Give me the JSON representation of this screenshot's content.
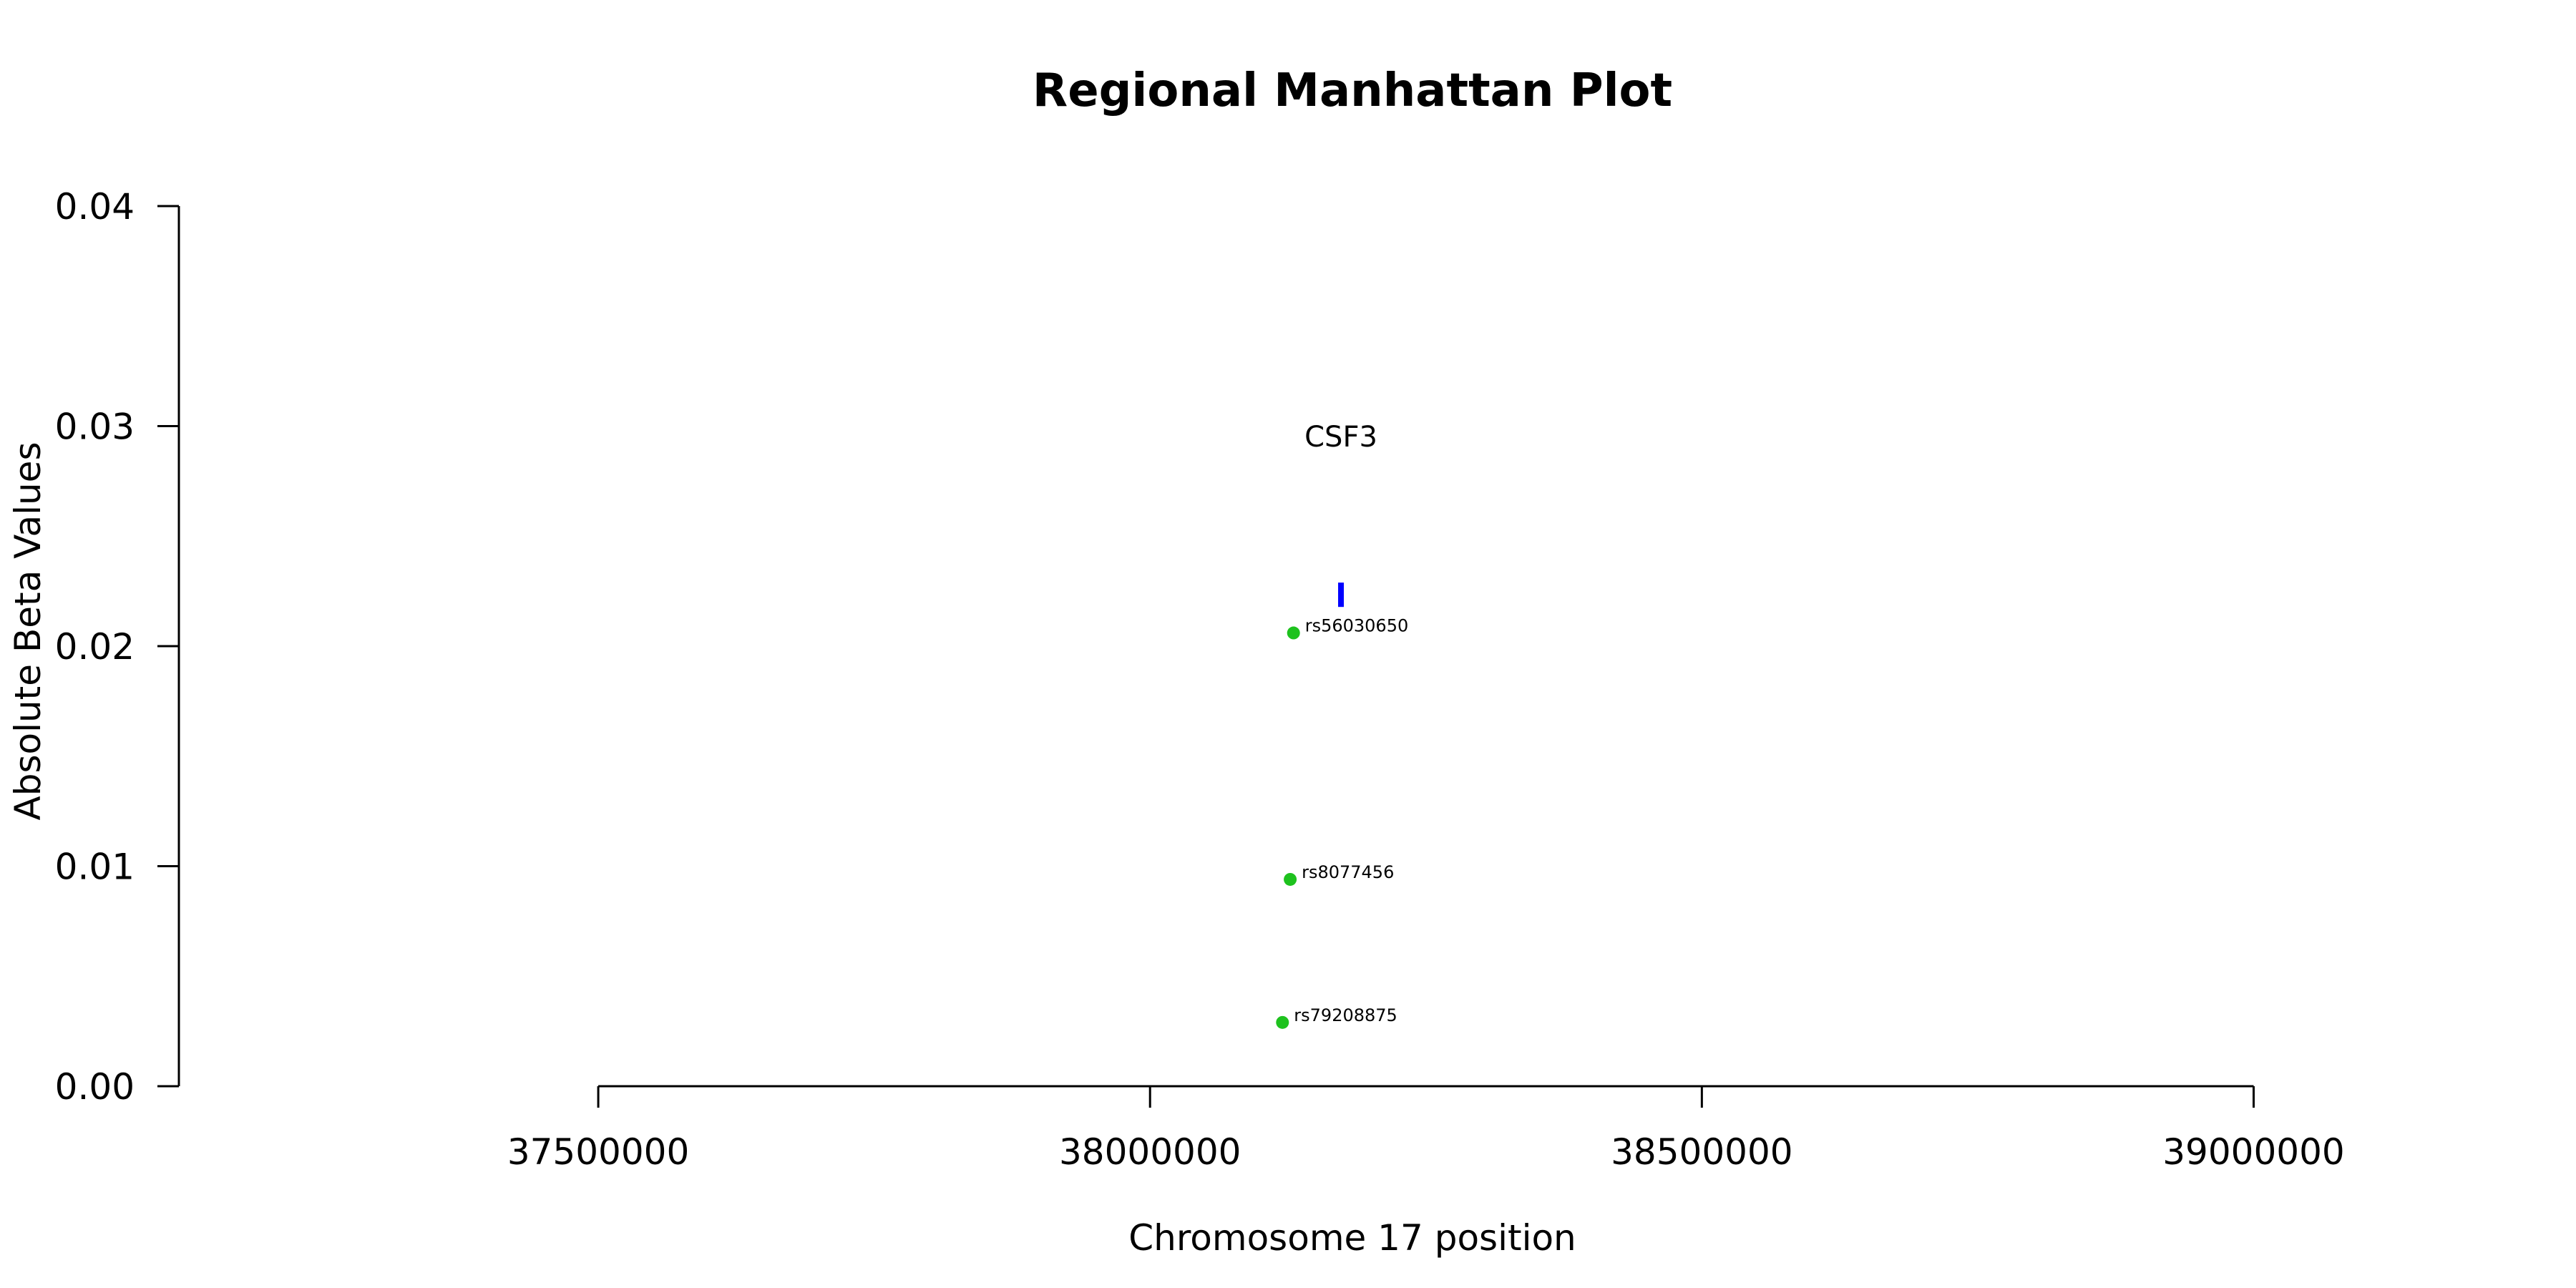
{
  "chart_data": {
    "type": "scatter",
    "title": "Regional Manhattan Plot",
    "xlabel": "Chromosome 17 position",
    "ylabel": "Absolute Beta Values",
    "xlim": [
      37120000,
      39130000
    ],
    "ylim": [
      0,
      0.04
    ],
    "xticks": [
      37500000,
      38000000,
      38500000,
      39000000
    ],
    "xtick_labels": [
      "37500000",
      "38000000",
      "38500000",
      "39000000"
    ],
    "yticks": [
      0,
      0.01,
      0.02,
      0.03,
      0.04
    ],
    "ytick_labels": [
      "0.00",
      "0.01",
      "0.02",
      "0.03",
      "0.04"
    ],
    "grid": false,
    "series": [
      {
        "color": "#1ec21e",
        "points": [
          {
            "x": 38130000,
            "y": 0.0206,
            "label": "rs56030650"
          },
          {
            "x": 38127000,
            "y": 0.0094,
            "label": "rs8077456"
          },
          {
            "x": 38120000,
            "y": 0.0029,
            "label": "rs79208875"
          }
        ]
      }
    ],
    "genes": [
      {
        "name": "CSF3",
        "x": 38173000,
        "y": 0.0224,
        "color": "#0000ff"
      }
    ]
  }
}
